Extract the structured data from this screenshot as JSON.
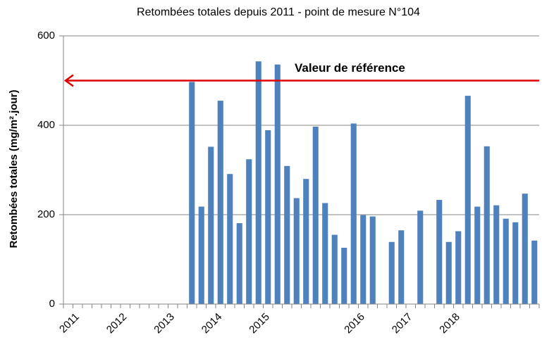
{
  "chart_data": {
    "type": "bar",
    "title": "Retombées totales depuis 2011 - point de mesure N°104",
    "y_label": "Retombées totales (mg/m².jour)",
    "categories": [
      null,
      "2011",
      null,
      null,
      null,
      null,
      "2012",
      null,
      null,
      null,
      null,
      "2013",
      null,
      null,
      null,
      null,
      "2014",
      null,
      null,
      null,
      null,
      "2015",
      null,
      null,
      null,
      null,
      null,
      null,
      null,
      null,
      null,
      "2016",
      null,
      null,
      null,
      null,
      "2017",
      null,
      null,
      null,
      null,
      "2018",
      null,
      null,
      null,
      null,
      null,
      null,
      null,
      null
    ],
    "values": [
      null,
      null,
      null,
      null,
      null,
      null,
      null,
      null,
      null,
      null,
      null,
      null,
      null,
      497,
      218,
      352,
      455,
      291,
      181,
      324,
      543,
      389,
      536,
      309,
      237,
      280,
      397,
      226,
      155,
      126,
      404,
      199,
      196,
      null,
      139,
      165,
      null,
      209,
      null,
      233,
      139,
      163,
      466,
      218,
      353,
      221,
      191,
      183,
      247,
      142
    ],
    "color": "#4f81bd",
    "ylim": [
      0,
      600
    ],
    "yticks": [
      0,
      200,
      400,
      600
    ],
    "grid": true,
    "reference": {
      "value": 500,
      "label": "Valeur de référence",
      "color": "#e00000"
    }
  }
}
